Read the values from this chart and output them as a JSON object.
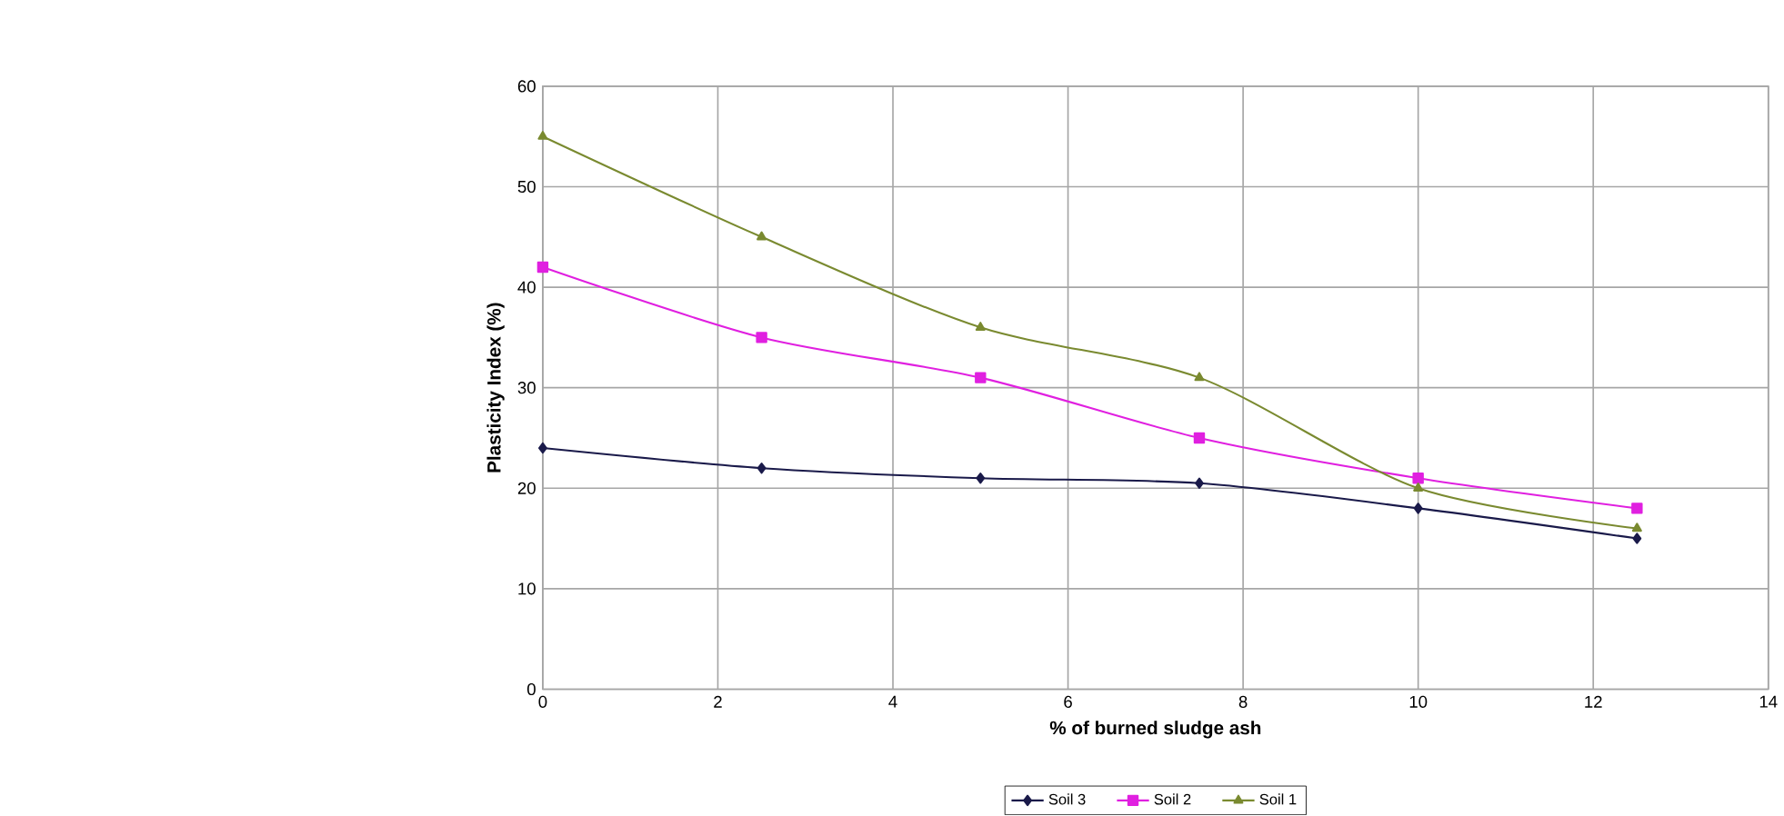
{
  "chart_data": {
    "type": "line",
    "xlabel": "% of burned sludge ash",
    "ylabel": "Plasticity Index (%)",
    "x": [
      0,
      2.5,
      5,
      7.5,
      10,
      12.5
    ],
    "series": [
      {
        "name": "Soil 3",
        "color": "#1a1a4a",
        "marker": "diamond",
        "values": [
          24,
          22,
          21,
          20.5,
          18,
          15
        ]
      },
      {
        "name": "Soil 2",
        "color": "#e020e0",
        "marker": "square",
        "values": [
          42,
          35,
          31,
          25,
          21,
          18
        ]
      },
      {
        "name": "Soil 1",
        "color": "#7a8a30",
        "marker": "triangle",
        "values": [
          55,
          45,
          36,
          31,
          20,
          16
        ]
      }
    ],
    "xlim": [
      0,
      14
    ],
    "xticks": [
      0,
      2,
      4,
      6,
      8,
      10,
      12,
      14
    ],
    "ylim": [
      0,
      60
    ],
    "yticks": [
      0,
      10,
      20,
      30,
      40,
      50,
      60
    ],
    "grid": true,
    "legend": "bottom",
    "line_style": "solid"
  }
}
